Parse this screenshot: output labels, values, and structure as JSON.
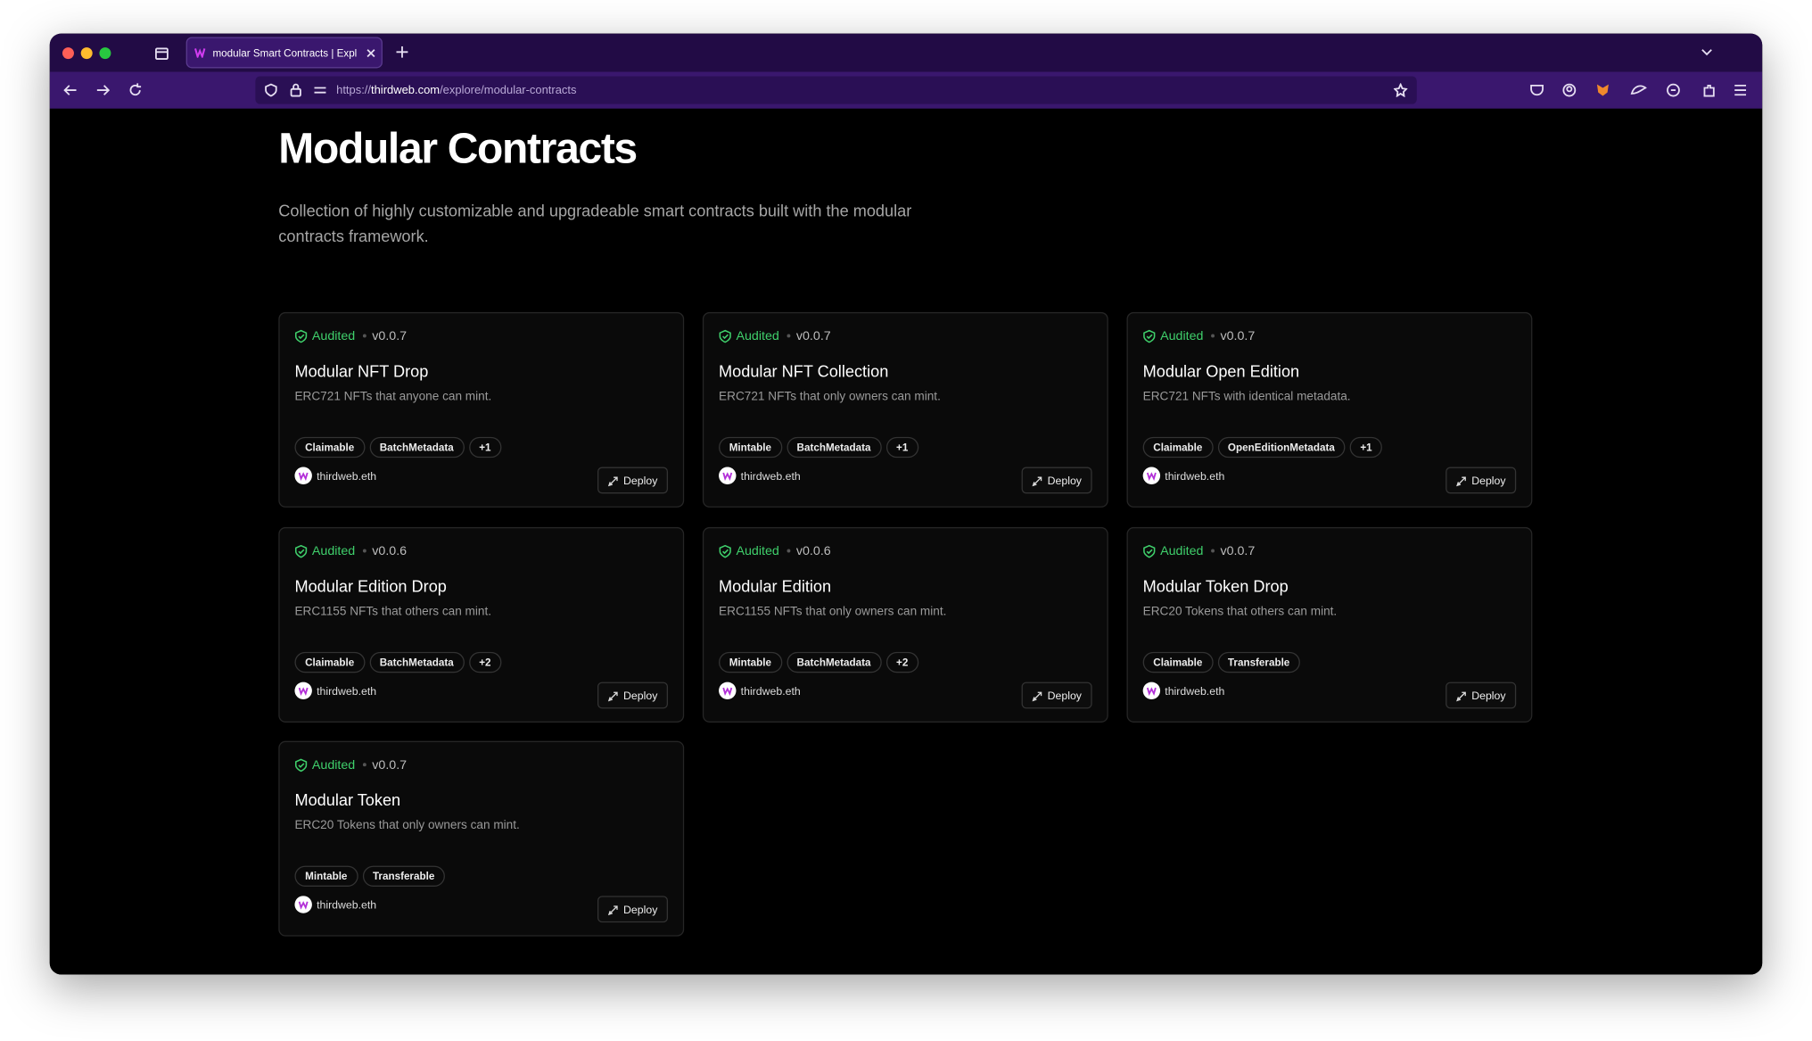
{
  "browser": {
    "tab_title": "modular Smart Contracts | Expl",
    "url": {
      "scheme": "https://",
      "host": "thirdweb.com",
      "path": "/explore/modular-contracts"
    }
  },
  "header": {
    "title": "Modular Contracts",
    "description": "Collection of highly customizable and upgradeable smart contracts built with the modular contracts framework."
  },
  "cards": [
    {
      "status": "Audited",
      "version": "v0.0.7",
      "title": "Modular NFT Drop",
      "description": "ERC721 NFTs that anyone can mint.",
      "tags": [
        "Claimable",
        "BatchMetadata",
        "+1"
      ],
      "author": "thirdweb.eth",
      "action": "Deploy"
    },
    {
      "status": "Audited",
      "version": "v0.0.7",
      "title": "Modular NFT Collection",
      "description": "ERC721 NFTs that only owners can mint.",
      "tags": [
        "Mintable",
        "BatchMetadata",
        "+1"
      ],
      "author": "thirdweb.eth",
      "action": "Deploy"
    },
    {
      "status": "Audited",
      "version": "v0.0.7",
      "title": "Modular Open Edition",
      "description": "ERC721 NFTs with identical metadata.",
      "tags": [
        "Claimable",
        "OpenEditionMetadata",
        "+1"
      ],
      "author": "thirdweb.eth",
      "action": "Deploy"
    },
    {
      "status": "Audited",
      "version": "v0.0.6",
      "title": "Modular Edition Drop",
      "description": "ERC1155 NFTs that others can mint.",
      "tags": [
        "Claimable",
        "BatchMetadata",
        "+2"
      ],
      "author": "thirdweb.eth",
      "action": "Deploy"
    },
    {
      "status": "Audited",
      "version": "v0.0.6",
      "title": "Modular Edition",
      "description": "ERC1155 NFTs that only owners can mint.",
      "tags": [
        "Mintable",
        "BatchMetadata",
        "+2"
      ],
      "author": "thirdweb.eth",
      "action": "Deploy"
    },
    {
      "status": "Audited",
      "version": "v0.0.7",
      "title": "Modular Token Drop",
      "description": "ERC20 Tokens that others can mint.",
      "tags": [
        "Claimable",
        "Transferable"
      ],
      "author": "thirdweb.eth",
      "action": "Deploy"
    },
    {
      "status": "Audited",
      "version": "v0.0.7",
      "title": "Modular Token",
      "description": "ERC20 Tokens that only owners can mint.",
      "tags": [
        "Mintable",
        "Transferable"
      ],
      "author": "thirdweb.eth",
      "action": "Deploy"
    }
  ]
}
